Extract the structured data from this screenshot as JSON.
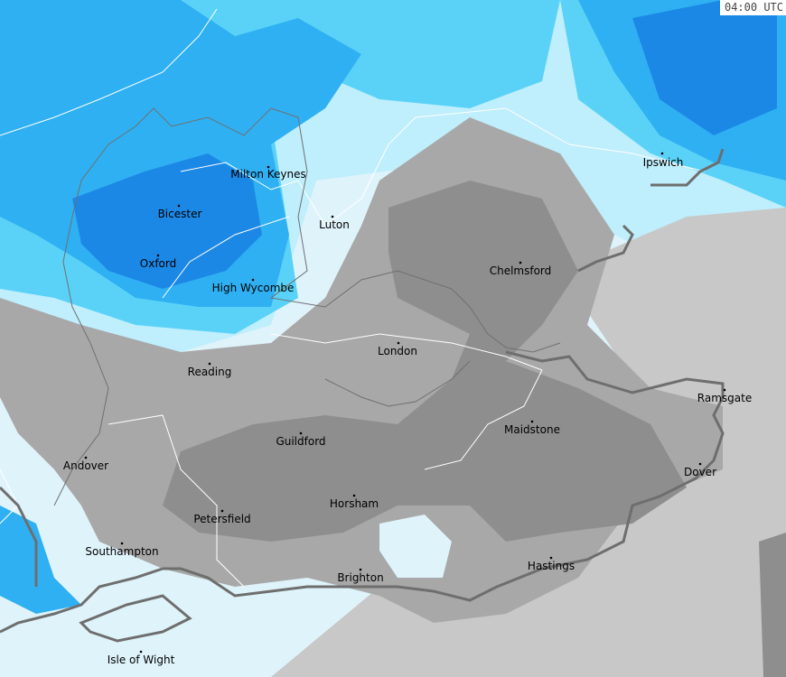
{
  "timestamp": "04:00 UTC",
  "colors": {
    "sea_light": "#dff3fb",
    "light_cyan": "#bfeefc",
    "cyan": "#5ad2f8",
    "blue": "#2fb0f2",
    "dark_blue": "#1c88e6",
    "grey_light": "#c8c8c8",
    "grey": "#a8a8a8",
    "grey_dark": "#8e8e8e",
    "coast": "#707070",
    "border": "#ffffff"
  },
  "cities": [
    {
      "name": "Ipswich"
    },
    {
      "name": "Milton Keynes"
    },
    {
      "name": "Bicester"
    },
    {
      "name": "Luton"
    },
    {
      "name": "Oxford"
    },
    {
      "name": "Chelmsford"
    },
    {
      "name": "High Wycombe"
    },
    {
      "name": "London"
    },
    {
      "name": "Reading"
    },
    {
      "name": "Ramsgate"
    },
    {
      "name": "Maidstone"
    },
    {
      "name": "Guildford"
    },
    {
      "name": "Andover"
    },
    {
      "name": "Dover"
    },
    {
      "name": "Horsham"
    },
    {
      "name": "Petersfield"
    },
    {
      "name": "Southampton"
    },
    {
      "name": "Hastings"
    },
    {
      "name": "Brighton"
    },
    {
      "name": "Isle of Wight"
    }
  ]
}
